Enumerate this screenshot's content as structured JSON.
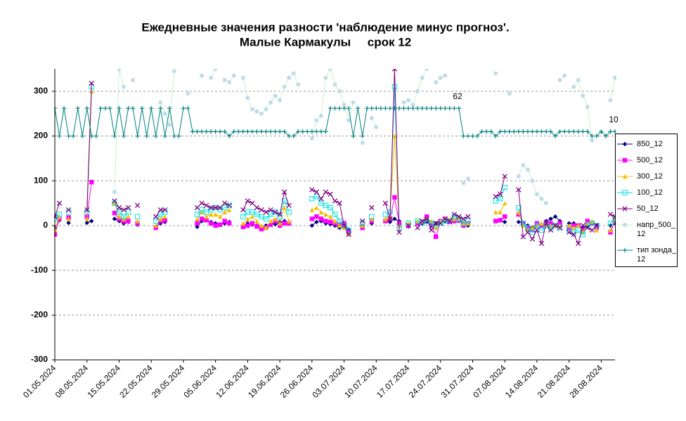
{
  "chart_data": {
    "type": "line",
    "title": "Ежедневные значения разности 'наблюдение минус прогноз'.",
    "subtitle": "Малые Кармакулы     срок 12",
    "annotations": [
      "62",
      "10"
    ],
    "categories": [
      "01.05.2024",
      null,
      null,
      null,
      null,
      null,
      null,
      "08.05.2024",
      null,
      null,
      null,
      null,
      null,
      null,
      "15.05.2024",
      null,
      null,
      null,
      null,
      null,
      null,
      "22.05.2024",
      null,
      null,
      null,
      null,
      null,
      null,
      "29.05.2024",
      null,
      null,
      null,
      null,
      null,
      null,
      "05.06.2024",
      null,
      null,
      null,
      null,
      null,
      null,
      "12.06.2024",
      null,
      null,
      null,
      null,
      null,
      null,
      "19.06.2024",
      null,
      null,
      null,
      null,
      null,
      null,
      "26.06.2024",
      null,
      null,
      null,
      null,
      null,
      null,
      "03.07.2024",
      null,
      null,
      null,
      null,
      null,
      null,
      "10.07.2024",
      null,
      null,
      null,
      null,
      null,
      null,
      "17.07.2024",
      null,
      null,
      null,
      null,
      null,
      null,
      "24.07.2024",
      null,
      null,
      null,
      null,
      null,
      null,
      "31.07.2024",
      null,
      null,
      null,
      null,
      null,
      null,
      "07.08.2024",
      null,
      null,
      null,
      null,
      null,
      null,
      "14.08.2024",
      null,
      null,
      null,
      null,
      null,
      null,
      "21.08.2024",
      null,
      null,
      null,
      null,
      null,
      null,
      "28.08.2024",
      null,
      null,
      null
    ],
    "ylim": [
      -300,
      350
    ],
    "yticks": [
      -300,
      -200,
      -100,
      0,
      100,
      200,
      300
    ],
    "grid": true,
    "series": [
      {
        "name": "850_12",
        "color": "#000080",
        "marker": "diamond",
        "values": [
          -5,
          12,
          null,
          6,
          null,
          null,
          null,
          6,
          10,
          null,
          null,
          null,
          null,
          15,
          10,
          5,
          8,
          null,
          2,
          null,
          null,
          null,
          -2,
          5,
          8,
          null,
          null,
          null,
          null,
          null,
          null,
          -3,
          10,
          12,
          8,
          5,
          2,
          5,
          8,
          null,
          null,
          0,
          5,
          2,
          0,
          -3,
          0,
          5,
          3,
          8,
          10,
          5,
          null,
          null,
          null,
          null,
          0,
          8,
          10,
          5,
          3,
          0,
          -5,
          5,
          -10,
          null,
          null,
          0,
          null,
          5,
          null,
          null,
          10,
          8,
          15,
          10,
          null,
          -2,
          null,
          5,
          5,
          8,
          0,
          5,
          10,
          10,
          8,
          12,
          10,
          5,
          0,
          null,
          null,
          null,
          null,
          null,
          10,
          12,
          8,
          null,
          null,
          8,
          5,
          0,
          -5,
          5,
          0,
          10,
          15,
          20,
          10,
          null,
          5,
          5,
          0,
          -5,
          0,
          5,
          0,
          null,
          null,
          0,
          5
        ]
      },
      {
        "name": "500_12",
        "color": "#ff00ff",
        "marker": "square",
        "values": [
          -20,
          15,
          null,
          18,
          null,
          null,
          null,
          20,
          97,
          null,
          null,
          null,
          null,
          28,
          15,
          10,
          10,
          null,
          5,
          null,
          null,
          null,
          -5,
          10,
          12,
          null,
          null,
          null,
          null,
          null,
          null,
          5,
          15,
          12,
          5,
          0,
          2,
          10,
          5,
          null,
          null,
          -3,
          0,
          5,
          -2,
          -8,
          -5,
          2,
          10,
          0,
          5,
          5,
          null,
          null,
          null,
          null,
          15,
          20,
          15,
          10,
          8,
          5,
          2,
          5,
          -15,
          null,
          null,
          -5,
          null,
          10,
          null,
          null,
          10,
          15,
          63,
          5,
          null,
          0,
          null,
          5,
          8,
          20,
          5,
          -25,
          10,
          15,
          8,
          10,
          12,
          0,
          5,
          null,
          null,
          null,
          null,
          null,
          10,
          12,
          20,
          null,
          null,
          25,
          5,
          -5,
          -10,
          5,
          0,
          5,
          5,
          0,
          5,
          null,
          -5,
          0,
          0,
          -10,
          10,
          5,
          -5,
          null,
          null,
          -15,
          10
        ]
      },
      {
        "name": "300_12",
        "color": "#f0c000",
        "marker": "triangle",
        "values": [
          -10,
          20,
          null,
          15,
          null,
          null,
          null,
          15,
          300,
          null,
          null,
          null,
          null,
          50,
          20,
          15,
          20,
          null,
          10,
          null,
          null,
          null,
          0,
          15,
          20,
          null,
          null,
          null,
          null,
          null,
          null,
          15,
          30,
          20,
          25,
          25,
          20,
          30,
          35,
          null,
          null,
          5,
          15,
          20,
          10,
          0,
          -5,
          10,
          15,
          5,
          40,
          10,
          null,
          null,
          null,
          null,
          35,
          40,
          30,
          25,
          20,
          10,
          0,
          -5,
          -18,
          null,
          null,
          0,
          null,
          15,
          null,
          null,
          15,
          20,
          200,
          0,
          null,
          5,
          null,
          10,
          10,
          15,
          10,
          -5,
          10,
          15,
          15,
          15,
          15,
          5,
          5,
          null,
          null,
          null,
          null,
          null,
          30,
          30,
          50,
          null,
          null,
          30,
          0,
          -10,
          -5,
          0,
          5,
          0,
          0,
          0,
          0,
          null,
          0,
          -5,
          0,
          -15,
          5,
          10,
          -10,
          null,
          null,
          -10,
          15
        ]
      },
      {
        "name": "100_12",
        "color": "#00e0e0",
        "marker": "open-square",
        "values": [
          15,
          25,
          null,
          30,
          null,
          null,
          null,
          30,
          310,
          null,
          null,
          null,
          null,
          50,
          30,
          20,
          30,
          null,
          20,
          null,
          null,
          null,
          10,
          25,
          30,
          null,
          null,
          null,
          null,
          null,
          null,
          25,
          35,
          30,
          35,
          40,
          35,
          40,
          45,
          null,
          null,
          20,
          30,
          30,
          25,
          20,
          15,
          25,
          30,
          20,
          55,
          30,
          null,
          null,
          null,
          null,
          60,
          65,
          50,
          45,
          40,
          25,
          10,
          0,
          -10,
          null,
          null,
          5,
          null,
          20,
          null,
          null,
          25,
          30,
          310,
          -5,
          null,
          5,
          null,
          10,
          5,
          10,
          5,
          0,
          5,
          10,
          10,
          20,
          15,
          5,
          10,
          null,
          null,
          null,
          null,
          null,
          55,
          60,
          85,
          null,
          null,
          40,
          5,
          -5,
          -15,
          0,
          -10,
          0,
          -5,
          0,
          -5,
          null,
          -10,
          -15,
          -10,
          -20,
          0,
          5,
          0,
          null,
          null,
          5,
          15
        ]
      },
      {
        "name": "50_12",
        "color": "#800080",
        "marker": "cross",
        "values": [
          20,
          50,
          null,
          35,
          null,
          null,
          null,
          35,
          318,
          null,
          null,
          null,
          null,
          55,
          40,
          35,
          40,
          null,
          45,
          null,
          null,
          null,
          20,
          35,
          35,
          null,
          null,
          null,
          null,
          null,
          null,
          40,
          50,
          45,
          40,
          40,
          40,
          50,
          45,
          null,
          null,
          35,
          55,
          50,
          40,
          35,
          30,
          35,
          30,
          25,
          75,
          45,
          null,
          null,
          null,
          null,
          80,
          75,
          60,
          75,
          70,
          55,
          50,
          0,
          -20,
          null,
          null,
          10,
          null,
          40,
          null,
          null,
          50,
          15,
          350,
          -15,
          null,
          0,
          null,
          -5,
          10,
          15,
          -10,
          5,
          5,
          15,
          10,
          25,
          20,
          15,
          20,
          null,
          null,
          null,
          null,
          null,
          65,
          70,
          110,
          null,
          null,
          80,
          -25,
          -15,
          -30,
          -10,
          -40,
          5,
          -10,
          0,
          -5,
          null,
          -15,
          -20,
          -40,
          0,
          -5,
          -10,
          0,
          null,
          null,
          25,
          20
        ]
      },
      {
        "name": "напр_500_12",
        "color": "#c0dce8",
        "line_color": "#c8f0c8",
        "marker": "circle",
        "values": [
          null,
          null,
          null,
          null,
          null,
          null,
          null,
          null,
          null,
          null,
          null,
          null,
          null,
          75,
          350,
          310,
          null,
          325,
          null,
          null,
          null,
          null,
          null,
          275,
          250,
          225,
          345,
          null,
          null,
          295,
          null,
          null,
          335,
          null,
          330,
          350,
          null,
          325,
          320,
          335,
          null,
          330,
          285,
          260,
          255,
          250,
          260,
          275,
          290,
          280,
          310,
          330,
          340,
          315,
          null,
          null,
          195,
          235,
          245,
          330,
          350,
          315,
          300,
          270,
          235,
          275,
          null,
          185,
          null,
          240,
          220,
          null,
          null,
          null,
          null,
          null,
          275,
          280,
          270,
          300,
          330,
          350,
          null,
          320,
          330,
          335,
          null,
          null,
          null,
          95,
          105,
          null,
          null,
          null,
          null,
          null,
          340,
          null,
          null,
          295,
          null,
          110,
          135,
          125,
          100,
          70,
          60,
          50,
          null,
          null,
          325,
          335,
          null,
          310,
          325,
          290,
          265,
          190,
          null,
          null,
          null,
          280,
          330
        ]
      },
      {
        "name": "тип зонда_12",
        "color": "#008080",
        "marker": "plus",
        "values": [
          262,
          200,
          262,
          200,
          200,
          262,
          200,
          262,
          200,
          200,
          262,
          262,
          262,
          200,
          262,
          200,
          262,
          262,
          200,
          262,
          200,
          262,
          200,
          262,
          200,
          262,
          200,
          200,
          262,
          262,
          210,
          210,
          210,
          210,
          210,
          210,
          210,
          210,
          200,
          210,
          210,
          210,
          210,
          210,
          210,
          210,
          210,
          210,
          210,
          210,
          210,
          200,
          200,
          210,
          210,
          210,
          210,
          210,
          210,
          210,
          262,
          262,
          262,
          262,
          262,
          200,
          262,
          200,
          262,
          262,
          262,
          262,
          262,
          262,
          262,
          262,
          262,
          262,
          262,
          262,
          262,
          262,
          262,
          262,
          262,
          262,
          262,
          262,
          262,
          200,
          200,
          200,
          200,
          210,
          210,
          210,
          200,
          210,
          210,
          210,
          210,
          210,
          210,
          210,
          210,
          210,
          210,
          210,
          210,
          200,
          210,
          210,
          210,
          210,
          210,
          210,
          210,
          200,
          200,
          210,
          200,
          210,
          210
        ]
      }
    ]
  }
}
